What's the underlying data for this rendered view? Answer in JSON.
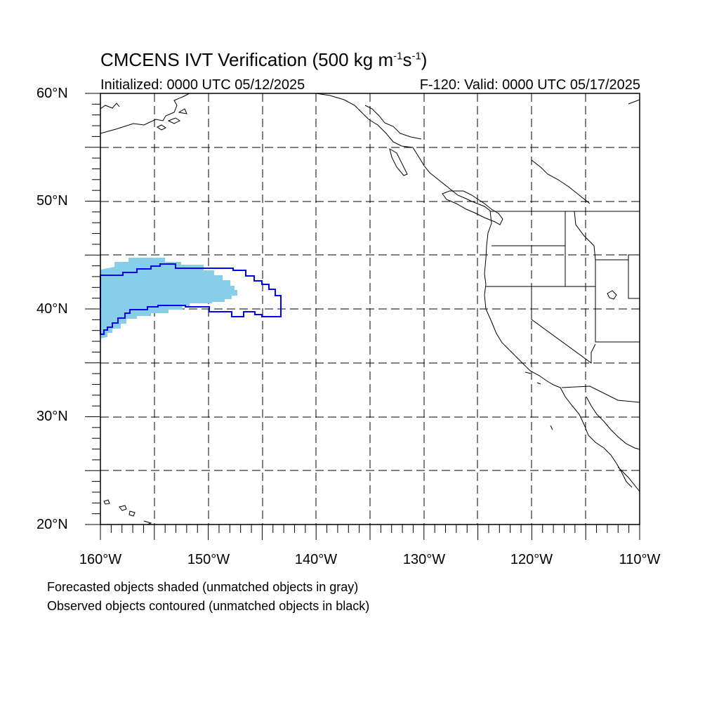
{
  "title": "CMCENS IVT Verification (500 kg m",
  "title_exp1": "-1",
  "title_mid": "s",
  "title_exp2": "-1",
  "title_end": ")",
  "init_label": "Initialized: 0000 UTC 05/12/2025",
  "valid_label": "F-120: Valid: 0000 UTC 05/17/2025",
  "lat_labels": [
    "60°N",
    "50°N",
    "40°N",
    "30°N",
    "20°N"
  ],
  "lon_labels": [
    "160°W",
    "150°W",
    "140°W",
    "130°W",
    "120°W",
    "110°W"
  ],
  "footnote_forecast": "Forecasted objects shaded (unmatched objects in gray)",
  "footnote_observed": "Observed objects contoured (unmatched objects in black)",
  "colors": {
    "forecast_fill": "#87CEEB",
    "observed_contour": "#0000FF",
    "coastline": "#000000",
    "grid": "#000000"
  },
  "map_extent": {
    "lon_min": -160,
    "lon_max": -110,
    "lat_min": 20,
    "lat_max": 60
  }
}
